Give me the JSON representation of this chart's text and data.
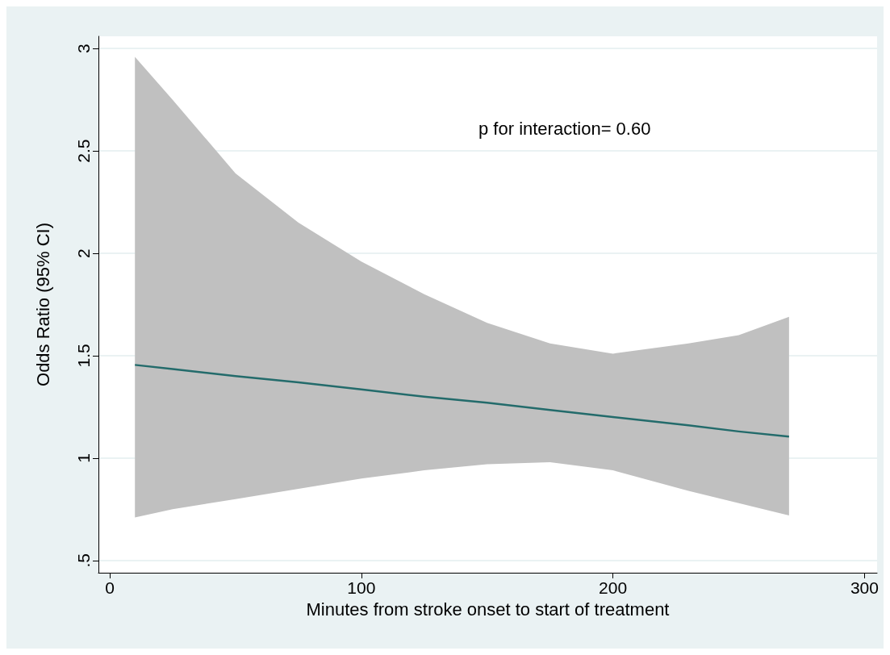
{
  "chart_data": {
    "type": "line",
    "xlabel": "Minutes from stroke onset to start of treatment",
    "ylabel": "Odds Ratio (95% CI)",
    "annotations": [
      "p for interaction= 0.60"
    ],
    "x": [
      10,
      25,
      50,
      75,
      100,
      125,
      150,
      175,
      200,
      230,
      250,
      270
    ],
    "series": [
      {
        "color": "#236b6b",
        "values": [
          1.455,
          1.435,
          1.4,
          1.37,
          1.335,
          1.3,
          1.27,
          1.235,
          1.2,
          1.16,
          1.13,
          1.105
        ],
        "lower": [
          0.71,
          0.75,
          0.8,
          0.85,
          0.9,
          0.94,
          0.97,
          0.98,
          0.94,
          0.84,
          0.78,
          0.72
        ],
        "upper": [
          2.96,
          2.75,
          2.39,
          2.15,
          1.96,
          1.8,
          1.66,
          1.56,
          1.51,
          1.56,
          1.6,
          1.69
        ]
      }
    ],
    "xlim": [
      -4.5,
      305
    ],
    "xticks": [
      0,
      100,
      200,
      300
    ],
    "ylim": [
      0.44,
      3.06
    ],
    "yticks": [
      {
        "value": 0.5,
        "label": ".5"
      },
      1,
      1.5,
      2,
      2.5,
      3
    ],
    "grid": "y",
    "marker": "none",
    "line_style": "solid"
  }
}
